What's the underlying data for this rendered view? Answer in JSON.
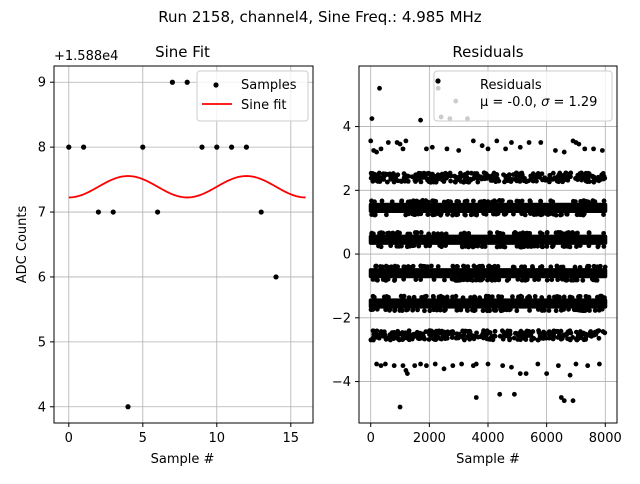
{
  "figure": {
    "suptitle": "Run 2158, channel4, Sine Freq.: 4.985 MHz"
  },
  "chart_data": [
    {
      "type": "scatter",
      "title": "Sine Fit",
      "xlabel": "Sample #",
      "ylabel": "ADC Counts",
      "offset_label": "+1.588e4",
      "xlim": [
        -1,
        16.5
      ],
      "ylim": [
        3.75,
        9.25
      ],
      "xticks": [
        0,
        5,
        10,
        15
      ],
      "yticks": [
        4,
        5,
        6,
        7,
        8,
        9
      ],
      "grid": true,
      "legend_position": "top-right",
      "series": [
        {
          "name": "Samples",
          "kind": "points",
          "color": "#000000",
          "x": [
            0,
            1,
            2,
            3,
            4,
            5,
            6,
            7,
            8,
            9,
            10,
            11,
            12,
            13,
            14
          ],
          "y": [
            8,
            8,
            7,
            7,
            4,
            8,
            7,
            9,
            9,
            8,
            8,
            8,
            8,
            7,
            6
          ]
        },
        {
          "name": "Sine fit",
          "kind": "line",
          "color": "#ff0000",
          "model": {
            "offset": 7.39,
            "amplitude": 0.165,
            "period": 8.0,
            "phase_peak_x": 4.0,
            "x_start": 0,
            "x_end": 16
          }
        }
      ]
    },
    {
      "type": "scatter",
      "title": "Residuals",
      "xlabel": "Sample #",
      "ylabel": "",
      "xlim": [
        -400,
        8400
      ],
      "ylim": [
        -5.3,
        5.9
      ],
      "xticks": [
        0,
        2000,
        4000,
        6000,
        8000
      ],
      "yticks": [
        -4,
        -2,
        0,
        2,
        4
      ],
      "grid": true,
      "legend_position": "top-right",
      "legend": {
        "label": "Residuals",
        "stats_prefix": "μ = -0.0, ",
        "sigma_symbol": "σ",
        "stats_suffix": " = 1.29"
      },
      "series": [
        {
          "name": "Residuals",
          "kind": "bands",
          "color": "#000000",
          "x_range": [
            0,
            8000
          ],
          "dense_bands": [
            {
              "level": 1.45,
              "spread": 0.16
            },
            {
              "level": 0.45,
              "spread": 0.16
            },
            {
              "level": -0.6,
              "spread": 0.16
            },
            {
              "level": -1.55,
              "spread": 0.16
            }
          ],
          "medium_bands": [
            {
              "level": 2.4,
              "spread": 0.15,
              "count": 330
            },
            {
              "level": -2.55,
              "spread": 0.15,
              "count": 320
            }
          ],
          "outliers": [
            [
              0,
              3.55
            ],
            [
              40,
              4.25
            ],
            [
              100,
              3.25
            ],
            [
              200,
              3.2
            ],
            [
              300,
              5.2
            ],
            [
              350,
              3.3
            ],
            [
              600,
              3.5
            ],
            [
              900,
              3.5
            ],
            [
              1000,
              3.45
            ],
            [
              1100,
              3.3
            ],
            [
              1200,
              3.55
            ],
            [
              1700,
              4.2
            ],
            [
              1900,
              3.3
            ],
            [
              2100,
              3.35
            ],
            [
              2300,
              5.2
            ],
            [
              2400,
              4.3
            ],
            [
              2600,
              3.3
            ],
            [
              2700,
              4.25
            ],
            [
              2900,
              4.8
            ],
            [
              3000,
              3.25
            ],
            [
              3300,
              4.25
            ],
            [
              3500,
              3.55
            ],
            [
              3800,
              3.4
            ],
            [
              4000,
              3.3
            ],
            [
              4300,
              3.55
            ],
            [
              4600,
              3.3
            ],
            [
              4800,
              3.5
            ],
            [
              5100,
              3.35
            ],
            [
              5400,
              3.5
            ],
            [
              5800,
              3.5
            ],
            [
              6300,
              3.25
            ],
            [
              6600,
              3.2
            ],
            [
              6900,
              3.55
            ],
            [
              7000,
              3.5
            ],
            [
              7100,
              3.45
            ],
            [
              7300,
              3.3
            ],
            [
              7600,
              3.3
            ],
            [
              7900,
              3.25
            ],
            [
              200,
              -3.45
            ],
            [
              350,
              -3.5
            ],
            [
              500,
              -3.45
            ],
            [
              800,
              -3.5
            ],
            [
              1100,
              -3.5
            ],
            [
              1200,
              -3.65
            ],
            [
              1250,
              -3.75
            ],
            [
              1500,
              -3.5
            ],
            [
              1700,
              -3.45
            ],
            [
              1900,
              -3.5
            ],
            [
              2200,
              -3.45
            ],
            [
              2500,
              -3.6
            ],
            [
              2800,
              -3.5
            ],
            [
              3100,
              -3.45
            ],
            [
              3500,
              -3.5
            ],
            [
              3600,
              -3.45
            ],
            [
              4000,
              -3.45
            ],
            [
              4500,
              -3.5
            ],
            [
              4800,
              -3.55
            ],
            [
              5100,
              -3.75
            ],
            [
              5300,
              -3.75
            ],
            [
              5700,
              -3.45
            ],
            [
              6000,
              -3.75
            ],
            [
              6400,
              -3.5
            ],
            [
              6800,
              -3.8
            ],
            [
              7000,
              -3.45
            ],
            [
              7400,
              -3.5
            ],
            [
              7800,
              -3.45
            ],
            [
              1000,
              -4.8
            ],
            [
              3600,
              -4.5
            ],
            [
              4400,
              -4.4
            ],
            [
              4900,
              -4.4
            ],
            [
              6500,
              -4.5
            ],
            [
              6600,
              -4.6
            ],
            [
              6900,
              -4.6
            ]
          ]
        }
      ]
    }
  ]
}
